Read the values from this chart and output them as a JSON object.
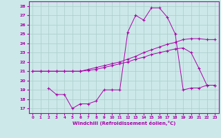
{
  "xlabel": "Windchill (Refroidissement éolien,°C)",
  "background_color": "#cce8e8",
  "grid_color": "#aacccc",
  "line_color": "#aa00aa",
  "xlim": [
    -0.5,
    23.5
  ],
  "ylim": [
    16.5,
    28.5
  ],
  "xticks": [
    0,
    1,
    2,
    3,
    4,
    5,
    6,
    7,
    8,
    9,
    10,
    11,
    12,
    13,
    14,
    15,
    16,
    17,
    18,
    19,
    20,
    21,
    22,
    23
  ],
  "yticks": [
    17,
    18,
    19,
    20,
    21,
    22,
    23,
    24,
    25,
    26,
    27,
    28
  ],
  "line1_x": [
    0,
    1,
    2,
    3,
    4,
    5,
    6,
    7,
    8,
    9,
    10,
    11,
    12,
    13,
    14,
    15,
    16,
    17,
    18,
    19,
    20,
    21,
    22,
    23
  ],
  "line1_y": [
    21.0,
    21.0,
    21.0,
    21.0,
    21.0,
    21.0,
    21.0,
    21.2,
    21.4,
    21.6,
    21.8,
    22.0,
    22.3,
    22.6,
    23.0,
    23.3,
    23.6,
    23.9,
    24.1,
    24.4,
    24.5,
    24.5,
    24.4,
    24.4
  ],
  "line2_x": [
    0,
    1,
    2,
    3,
    4,
    5,
    6,
    7,
    8,
    9,
    10,
    11,
    12,
    13,
    14,
    15,
    16,
    17,
    18,
    19,
    20,
    21,
    22,
    23
  ],
  "line2_y": [
    21.0,
    21.0,
    21.0,
    21.0,
    21.0,
    21.0,
    21.0,
    21.1,
    21.2,
    21.4,
    21.6,
    21.8,
    22.0,
    22.3,
    22.5,
    22.8,
    23.0,
    23.2,
    23.4,
    23.5,
    23.0,
    21.3,
    19.5,
    19.5
  ],
  "line3_x": [
    2,
    3,
    4,
    5,
    6,
    7,
    8,
    9,
    10,
    11,
    12,
    13,
    14,
    15,
    16,
    17,
    18,
    19,
    20,
    21,
    22,
    23
  ],
  "line3_y": [
    19.2,
    18.5,
    18.5,
    17.0,
    17.5,
    17.5,
    17.8,
    19.0,
    19.0,
    19.0,
    25.2,
    27.0,
    26.5,
    27.8,
    27.8,
    26.8,
    25.0,
    19.0,
    19.2,
    19.2,
    19.5,
    19.5
  ],
  "marker": "+"
}
